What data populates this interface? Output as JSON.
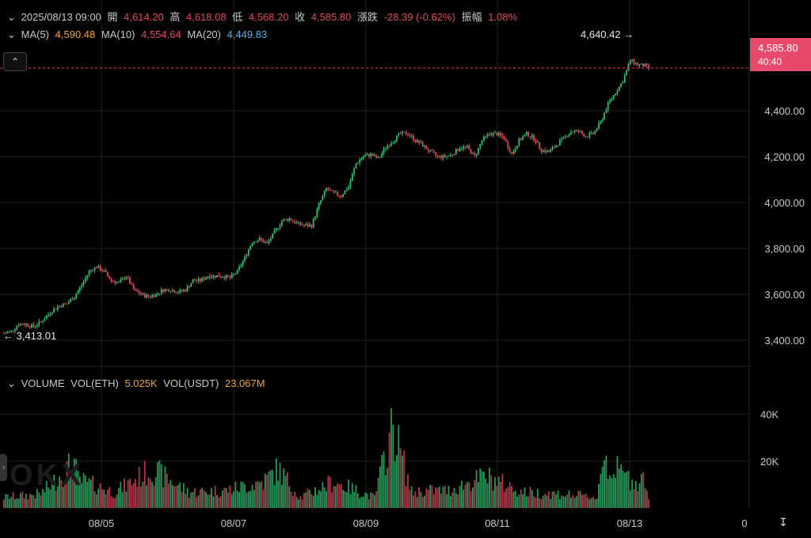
{
  "header": {
    "datetime": "2025/08/13 09:00",
    "open_label": "開",
    "open": "4,614.20",
    "high_label": "高",
    "high": "4,618.08",
    "low_label": "低",
    "low": "4,568.20",
    "close_label": "收",
    "close": "4,585.80",
    "change_label": "漲跌",
    "change": "-28.39 (-0.62%)",
    "amp_label": "振幅",
    "amp": "1.08%"
  },
  "ma": {
    "ma5_label": "MA(5)",
    "ma5": "4,590.48",
    "ma10_label": "MA(10)",
    "ma10": "4,554.64",
    "ma20_label": "MA(20)",
    "ma20": "4,449.83"
  },
  "volume_header": {
    "label": "VOLUME",
    "vol_eth_label": "VOL(ETH)",
    "vol_eth": "5.025K",
    "vol_usdt_label": "VOL(USDT)",
    "vol_usdt": "23.067M"
  },
  "price_tag": {
    "price": "4,585.80",
    "countdown": "40:40"
  },
  "watermark": "OKX",
  "colors": {
    "up": "#2fbf71",
    "down": "#e0465e",
    "grid": "#1f1f1f",
    "last_price_line": "#e0465e"
  },
  "chart_data": [
    {
      "type": "candlestick",
      "title": "",
      "y_ticks": [
        "3,400.00",
        "3,600.00",
        "3,800.00",
        "4,000.00",
        "4,200.00",
        "4,400.00"
      ],
      "y_tick_values": [
        3400,
        3600,
        3800,
        4000,
        4200,
        4400
      ],
      "ylim": [
        3290,
        4710
      ],
      "x_ticks": [
        "08/05",
        "08/07",
        "08/09",
        "08/11",
        "08/13",
        "0"
      ],
      "annotations": {
        "max": "4,640.42",
        "min": "3,413.01"
      },
      "last_price": 4585.8,
      "anchors": [
        [
          0,
          3430
        ],
        [
          4,
          3440
        ],
        [
          8,
          3470
        ],
        [
          12,
          3470
        ],
        [
          16,
          3460
        ],
        [
          20,
          3480
        ],
        [
          26,
          3530
        ],
        [
          30,
          3550
        ],
        [
          34,
          3560
        ],
        [
          38,
          3590
        ],
        [
          42,
          3640
        ],
        [
          46,
          3700
        ],
        [
          50,
          3720
        ],
        [
          54,
          3700
        ],
        [
          58,
          3660
        ],
        [
          62,
          3650
        ],
        [
          66,
          3680
        ],
        [
          70,
          3620
        ],
        [
          74,
          3600
        ],
        [
          78,
          3590
        ],
        [
          82,
          3600
        ],
        [
          86,
          3620
        ],
        [
          90,
          3620
        ],
        [
          94,
          3610
        ],
        [
          98,
          3620
        ],
        [
          102,
          3660
        ],
        [
          106,
          3660
        ],
        [
          110,
          3680
        ],
        [
          114,
          3680
        ],
        [
          118,
          3680
        ],
        [
          122,
          3670
        ],
        [
          126,
          3700
        ],
        [
          130,
          3760
        ],
        [
          134,
          3830
        ],
        [
          138,
          3840
        ],
        [
          142,
          3820
        ],
        [
          146,
          3870
        ],
        [
          150,
          3920
        ],
        [
          154,
          3930
        ],
        [
          158,
          3910
        ],
        [
          162,
          3900
        ],
        [
          166,
          3900
        ],
        [
          170,
          3990
        ],
        [
          174,
          4060
        ],
        [
          178,
          4040
        ],
        [
          182,
          4030
        ],
        [
          186,
          4070
        ],
        [
          190,
          4170
        ],
        [
          194,
          4200
        ],
        [
          198,
          4210
        ],
        [
          202,
          4190
        ],
        [
          206,
          4240
        ],
        [
          210,
          4270
        ],
        [
          214,
          4300
        ],
        [
          218,
          4300
        ],
        [
          222,
          4270
        ],
        [
          226,
          4250
        ],
        [
          230,
          4220
        ],
        [
          234,
          4200
        ],
        [
          238,
          4200
        ],
        [
          242,
          4210
        ],
        [
          246,
          4240
        ],
        [
          250,
          4240
        ],
        [
          254,
          4200
        ],
        [
          258,
          4270
        ],
        [
          262,
          4300
        ],
        [
          266,
          4300
        ],
        [
          270,
          4280
        ],
        [
          274,
          4210
        ],
        [
          278,
          4270
        ],
        [
          282,
          4300
        ],
        [
          286,
          4280
        ],
        [
          290,
          4230
        ],
        [
          294,
          4220
        ],
        [
          298,
          4250
        ],
        [
          302,
          4280
        ],
        [
          306,
          4310
        ],
        [
          310,
          4310
        ],
        [
          314,
          4290
        ],
        [
          318,
          4300
        ],
        [
          322,
          4350
        ],
        [
          326,
          4430
        ],
        [
          330,
          4480
        ],
        [
          334,
          4530
        ],
        [
          338,
          4620
        ],
        [
          342,
          4600
        ],
        [
          346,
          4595
        ],
        [
          348,
          4586
        ]
      ],
      "volume": {
        "y_ticks": [
          "20K",
          "40K"
        ],
        "y_tick_values": [
          20000,
          40000
        ],
        "ylim": [
          0,
          48000
        ],
        "anchors": [
          [
            0,
            6000
          ],
          [
            20,
            8000
          ],
          [
            38,
            26000
          ],
          [
            40,
            16000
          ],
          [
            60,
            9000
          ],
          [
            80,
            22000
          ],
          [
            100,
            9000
          ],
          [
            120,
            10000
          ],
          [
            140,
            15000
          ],
          [
            148,
            22000
          ],
          [
            160,
            6000
          ],
          [
            178,
            15000
          ],
          [
            180,
            14000
          ],
          [
            200,
            6000
          ],
          [
            210,
            47000
          ],
          [
            220,
            9000
          ],
          [
            230,
            10000
          ],
          [
            240,
            10000
          ],
          [
            260,
            18000
          ],
          [
            280,
            9000
          ],
          [
            300,
            8000
          ],
          [
            320,
            6000
          ],
          [
            324,
            33000
          ],
          [
            326,
            23000
          ],
          [
            330,
            22000
          ],
          [
            340,
            15000
          ],
          [
            346,
            17000
          ],
          [
            348,
            5000
          ]
        ]
      }
    }
  ]
}
